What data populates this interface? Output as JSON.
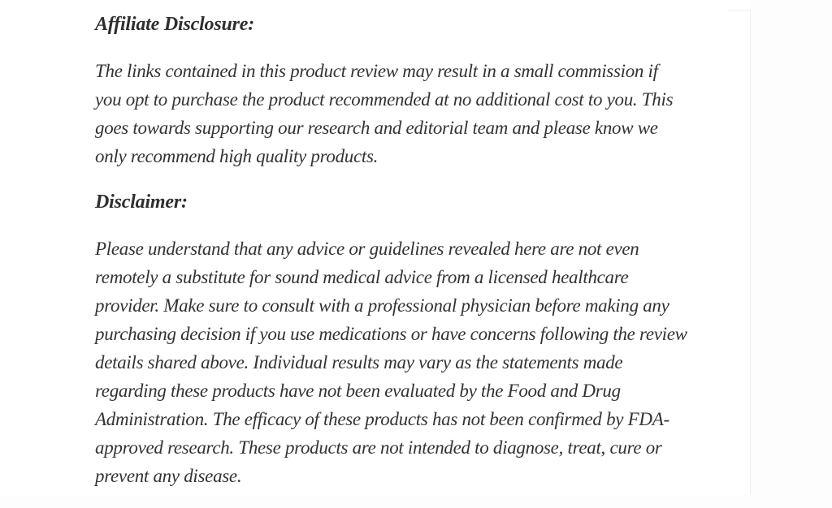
{
  "page": {
    "background_color": "#fdfdfd",
    "card_color": "#ffffff",
    "text_color": "#333333"
  },
  "article": {
    "affiliate_heading": "Affiliate Disclosure:",
    "affiliate_paragraph_lines": [
      "The links contained in this product review may result in a small commission if",
      "you opt to purchase the product recommended at no additional cost to you. This",
      "goes towards supporting our research and editorial team and please know we",
      "only recommend high quality products."
    ],
    "disclaimer_heading": "Disclaimer:",
    "disclaimer_paragraph_lines": [
      "Please understand that any advice or guidelines revealed here are not even",
      "remotely a substitute for sound medical advice from a licensed healthcare",
      "provider. Make sure to consult with a professional physician before making any",
      "purchasing decision if you use medications or have concerns following the review",
      "details shared above. Individual results may vary as the statements made",
      "regarding these products have not been evaluated by the Food and Drug",
      "Administration. The efficacy of these products has not been confirmed by FDA-",
      "approved research. These products are not intended to diagnose, treat, cure or",
      "prevent any disease."
    ]
  }
}
